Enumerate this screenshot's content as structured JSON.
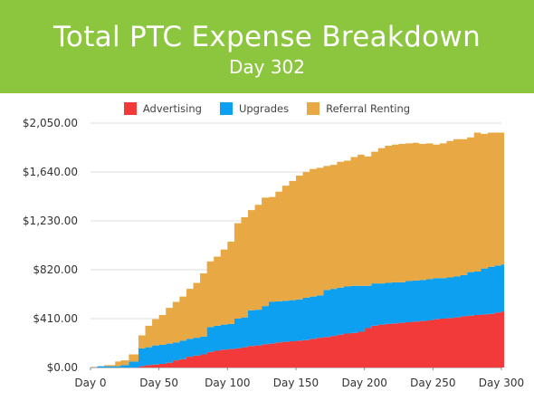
{
  "header": {
    "title": "Total PTC Expense Breakdown",
    "subtitle": "Day 302",
    "background_color": "#8cc63f"
  },
  "chart_data": {
    "type": "area",
    "stacked": true,
    "step": true,
    "title": "Total PTC Expense Breakdown",
    "subtitle": "Day 302",
    "xlabel": "",
    "ylabel": "",
    "xlim": [
      0,
      300
    ],
    "ylim": [
      0,
      2050
    ],
    "grid": true,
    "legend_position": "top",
    "x_ticks": [
      {
        "value": 0,
        "label": "Day 0"
      },
      {
        "value": 50,
        "label": "Day 50"
      },
      {
        "value": 100,
        "label": "Day 100"
      },
      {
        "value": 150,
        "label": "Day 150"
      },
      {
        "value": 200,
        "label": "Day 200"
      },
      {
        "value": 250,
        "label": "Day 250"
      },
      {
        "value": 300,
        "label": "Day 300"
      }
    ],
    "y_ticks": [
      {
        "value": 0,
        "label": "$0.00"
      },
      {
        "value": 410,
        "label": "$410.00"
      },
      {
        "value": 820,
        "label": "$820.00"
      },
      {
        "value": 1230,
        "label": "$1,230.00"
      },
      {
        "value": 1640,
        "label": "$1,640.00"
      },
      {
        "value": 2050,
        "label": "$2,050.00"
      }
    ],
    "x": [
      0,
      5,
      10,
      18,
      22,
      28,
      35,
      40,
      45,
      50,
      55,
      60,
      65,
      70,
      75,
      80,
      85,
      90,
      95,
      100,
      105,
      110,
      115,
      120,
      125,
      130,
      135,
      140,
      145,
      150,
      155,
      160,
      165,
      170,
      175,
      180,
      185,
      190,
      195,
      200,
      205,
      210,
      215,
      220,
      225,
      230,
      235,
      240,
      245,
      250,
      255,
      260,
      265,
      270,
      275,
      280,
      285,
      290,
      295,
      300,
      302
    ],
    "series": [
      {
        "name": "Advertising",
        "color": "#f23a3a",
        "values": [
          0,
          0,
          0,
          0,
          0,
          0,
          10,
          20,
          25,
          30,
          40,
          60,
          70,
          90,
          100,
          110,
          130,
          140,
          150,
          155,
          160,
          170,
          180,
          185,
          195,
          200,
          210,
          215,
          220,
          225,
          230,
          240,
          250,
          255,
          265,
          275,
          285,
          290,
          300,
          330,
          350,
          360,
          365,
          370,
          375,
          380,
          385,
          390,
          395,
          405,
          410,
          415,
          420,
          430,
          435,
          440,
          445,
          450,
          460,
          470,
          475
        ]
      },
      {
        "name": "Upgrades",
        "color": "#0ea0f0",
        "values": [
          0,
          10,
          10,
          10,
          20,
          50,
          150,
          150,
          160,
          160,
          160,
          150,
          155,
          150,
          150,
          150,
          210,
          210,
          210,
          210,
          250,
          250,
          300,
          300,
          320,
          350,
          345,
          345,
          345,
          345,
          355,
          355,
          355,
          395,
          395,
          395,
          395,
          395,
          385,
          355,
          355,
          345,
          345,
          345,
          340,
          345,
          345,
          345,
          345,
          345,
          340,
          340,
          345,
          345,
          365,
          365,
          385,
          395,
          395,
          395,
          400
        ]
      },
      {
        "name": "Referral Renting",
        "color": "#e8a843",
        "values": [
          0,
          0,
          10,
          40,
          40,
          60,
          110,
          180,
          220,
          250,
          300,
          340,
          370,
          420,
          460,
          530,
          550,
          580,
          630,
          690,
          800,
          840,
          840,
          880,
          910,
          880,
          920,
          965,
          1000,
          1040,
          1055,
          1070,
          1070,
          1040,
          1040,
          1055,
          1055,
          1080,
          1100,
          1085,
          1105,
          1135,
          1150,
          1155,
          1160,
          1155,
          1155,
          1140,
          1140,
          1120,
          1130,
          1145,
          1150,
          1140,
          1130,
          1165,
          1130,
          1125,
          1115,
          1105,
          1105
        ]
      }
    ]
  }
}
